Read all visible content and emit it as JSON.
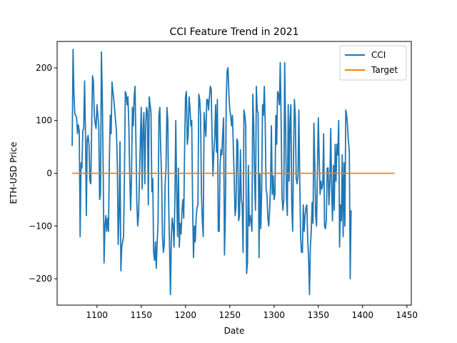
{
  "chart_data": {
    "type": "line",
    "title": "CCI Feature Trend in 2021",
    "xlabel": "Date",
    "ylabel": "ETH-USD Price",
    "xlim": [
      1055,
      1455
    ],
    "ylim": [
      -250,
      250
    ],
    "xticks": [
      1100,
      1150,
      1200,
      1250,
      1300,
      1350,
      1400,
      1450
    ],
    "yticks": [
      -200,
      -100,
      0,
      100,
      200
    ],
    "grid": false,
    "legend_position": "top-right",
    "series": [
      {
        "name": "CCI",
        "color": "#1f77b4",
        "x_start": 1072,
        "x_step": 1,
        "values": [
          52,
          235,
          150,
          112,
          110,
          105,
          75,
          92,
          80,
          -120,
          20,
          10,
          80,
          85,
          175,
          80,
          -80,
          65,
          72,
          55,
          -15,
          -20,
          85,
          185,
          175,
          110,
          95,
          85,
          130,
          110,
          90,
          -50,
          -40,
          230,
          150,
          10,
          -170,
          -100,
          -80,
          -110,
          -85,
          -110,
          25,
          110,
          75,
          173,
          155,
          140,
          120,
          100,
          80,
          15,
          -135,
          -80,
          60,
          -185,
          -140,
          -130,
          -120,
          -10,
          155,
          150,
          130,
          145,
          90,
          -5,
          -70,
          -10,
          125,
          90,
          145,
          165,
          60,
          -55,
          -100,
          -80,
          -5,
          60,
          125,
          -30,
          85,
          115,
          -20,
          90,
          125,
          118,
          -60,
          145,
          130,
          115,
          -35,
          -10,
          -150,
          -165,
          -130,
          -180,
          -130,
          -95,
          110,
          125,
          45,
          -10,
          -120,
          -150,
          -135,
          -20,
          10,
          125,
          100,
          -60,
          -140,
          -230,
          -120,
          -85,
          -100,
          -140,
          -50,
          100,
          -30,
          -120,
          10,
          -140,
          -95,
          -115,
          -70,
          -50,
          -85,
          50,
          145,
          155,
          55,
          70,
          145,
          125,
          90,
          100,
          -55,
          -160,
          -100,
          -130,
          -85,
          -65,
          -60,
          150,
          140,
          110,
          -40,
          -90,
          -120,
          115,
          90,
          70,
          140,
          140,
          120,
          145,
          165,
          160,
          70,
          -5,
          40,
          70,
          130,
          40,
          140,
          -110,
          -110,
          15,
          45,
          35,
          75,
          105,
          -155,
          -80,
          140,
          195,
          200,
          150,
          120,
          110,
          90,
          110,
          50,
          -10,
          -80,
          -65,
          65,
          60,
          -90,
          -80,
          45,
          -50,
          -60,
          -150,
          120,
          110,
          90,
          -190,
          -170,
          15,
          -100,
          -80,
          -90,
          -110,
          150,
          95,
          -10,
          -70,
          165,
          120,
          115,
          -160,
          0,
          -105,
          -35,
          130,
          110,
          165,
          95,
          -30,
          -40,
          -85,
          -100,
          -70,
          -25,
          90,
          -40,
          -5,
          -50,
          -40,
          110,
          55,
          155,
          150,
          130,
          210,
          100,
          -45,
          -70,
          -50,
          210,
          90,
          -45,
          -80,
          130,
          -15,
          100,
          130,
          -60,
          -110,
          35,
          140,
          110,
          -10,
          -20,
          -5,
          120,
          -10,
          -120,
          -150,
          -150,
          -60,
          -110,
          -80,
          -65,
          -60,
          -125,
          -160,
          -230,
          -140,
          -110,
          -55,
          -95,
          95,
          20,
          -80,
          -100,
          10,
          105,
          25,
          -40,
          -15,
          -30,
          -20,
          75,
          -100,
          -105,
          -90,
          10,
          10,
          -60,
          -15,
          85,
          -30,
          -90,
          15,
          -70,
          55,
          -15,
          55,
          35,
          100,
          -140,
          -60,
          -90,
          35,
          -120,
          20,
          -100,
          120,
          110,
          90,
          60,
          45,
          -200,
          -70
        ]
      },
      {
        "name": "Target",
        "color": "#ff7f0e",
        "x_start": 1072,
        "x_end": 1436,
        "constant": 0
      }
    ]
  }
}
